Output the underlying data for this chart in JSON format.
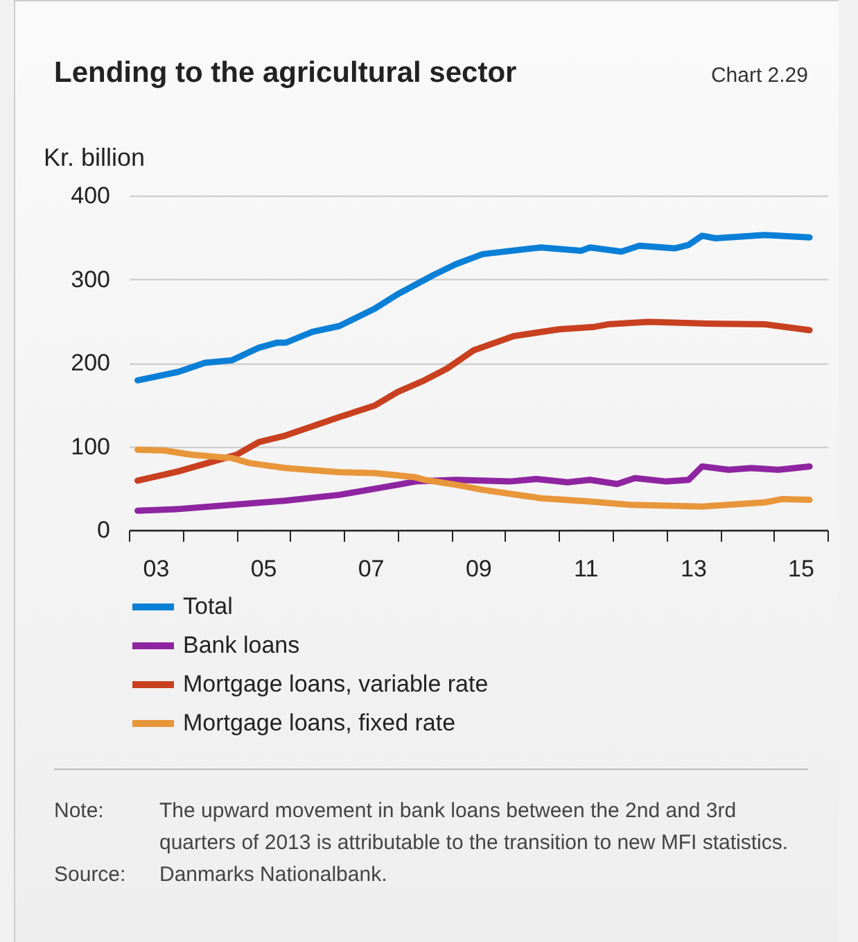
{
  "chart_data": {
    "type": "line",
    "title": "Lending to the agricultural sector",
    "subtitle": "Chart 2.29",
    "ylabel": "Kr. billion",
    "xlim": [
      "2003-01",
      "2016-01"
    ],
    "xticks": [
      {
        "value": "2003-01",
        "label": null
      },
      {
        "value": "2003-07",
        "label": "03"
      },
      {
        "value": "2004-01",
        "label": null
      },
      {
        "value": "2005-01",
        "label": null
      },
      {
        "value": "2005-07",
        "label": "05"
      },
      {
        "value": "2006-01",
        "label": null
      },
      {
        "value": "2007-01",
        "label": null
      },
      {
        "value": "2007-07",
        "label": "07"
      },
      {
        "value": "2008-01",
        "label": null
      },
      {
        "value": "2009-01",
        "label": null
      },
      {
        "value": "2009-07",
        "label": "09"
      },
      {
        "value": "2010-01",
        "label": null
      },
      {
        "value": "2011-01",
        "label": null
      },
      {
        "value": "2011-07",
        "label": "11"
      },
      {
        "value": "2012-01",
        "label": null
      },
      {
        "value": "2013-01",
        "label": null
      },
      {
        "value": "2013-07",
        "label": "13"
      },
      {
        "value": "2014-01",
        "label": null
      },
      {
        "value": "2015-01",
        "label": null
      },
      {
        "value": "2015-07",
        "label": "15"
      },
      {
        "value": "2016-01",
        "label": null
      }
    ],
    "ylim": [
      0,
      400
    ],
    "yticks": [
      0,
      100,
      200,
      300,
      400
    ],
    "grid": "y",
    "legend": "bottom",
    "series": [
      {
        "name": "Total",
        "color": "#0a7fd6",
        "x": [
          "2003-03",
          "2003-12",
          "2004-06",
          "2004-12",
          "2005-06",
          "2005-10",
          "2005-12",
          "2006-06",
          "2006-12",
          "2007-08",
          "2008-01",
          "2008-09",
          "2009-02",
          "2009-08",
          "2010-09",
          "2011-06",
          "2011-08",
          "2012-03",
          "2012-07",
          "2013-03",
          "2013-06",
          "2013-09",
          "2013-12",
          "2014-11",
          "2015-09"
        ],
        "values": [
          179,
          189,
          200,
          203,
          218,
          224,
          224,
          237,
          244,
          265,
          282,
          305,
          318,
          330,
          338,
          334,
          338,
          333,
          340,
          337,
          341,
          352,
          349,
          353,
          350
        ]
      },
      {
        "name": "Bank loans",
        "color": "#8e24a0",
        "x": [
          "2003-03",
          "2003-12",
          "2004-12",
          "2005-12",
          "2006-12",
          "2008-01",
          "2008-05",
          "2009-02",
          "2010-02",
          "2010-08",
          "2011-03",
          "2011-08",
          "2012-02",
          "2012-06",
          "2013-01",
          "2013-06",
          "2013-09",
          "2014-03",
          "2014-08",
          "2015-02",
          "2015-09"
        ],
        "values": [
          23,
          25,
          30,
          35,
          42,
          54,
          58,
          60,
          58,
          61,
          57,
          60,
          55,
          62,
          58,
          60,
          76,
          72,
          74,
          72,
          76
        ]
      },
      {
        "name": "Mortgage loans, variable rate",
        "color": "#c8401f",
        "x": [
          "2003-03",
          "2003-12",
          "2005-01",
          "2005-06",
          "2005-12",
          "2006-12",
          "2007-08",
          "2008-01",
          "2008-07",
          "2008-12",
          "2009-06",
          "2010-03",
          "2011-01",
          "2011-09",
          "2011-12",
          "2012-09",
          "2013-09",
          "2014-11",
          "2015-09"
        ],
        "values": [
          59,
          70,
          90,
          105,
          113,
          135,
          149,
          165,
          179,
          193,
          215,
          232,
          240,
          243,
          246,
          249,
          247,
          246,
          239
        ]
      },
      {
        "name": "Mortgage loans, fixed rate",
        "color": "#e8963a",
        "x": [
          "2003-03",
          "2003-09",
          "2004-03",
          "2004-12",
          "2005-04",
          "2005-12",
          "2006-12",
          "2007-08",
          "2008-05",
          "2008-07",
          "2009-02",
          "2009-08",
          "2010-09",
          "2011-08",
          "2012-05",
          "2013-09",
          "2014-11",
          "2015-03",
          "2015-09"
        ],
        "values": [
          96,
          95,
          90,
          86,
          80,
          74,
          69,
          68,
          63,
          60,
          54,
          48,
          38,
          34,
          30,
          28,
          33,
          37,
          36
        ]
      }
    ],
    "annotations": [
      "Note: The upward movement in bank loans between the 2nd and 3rd quarters of 2013 is attributable to the transition to new MFI statistics.",
      "Source: Danmarks Nationalbank."
    ]
  }
}
